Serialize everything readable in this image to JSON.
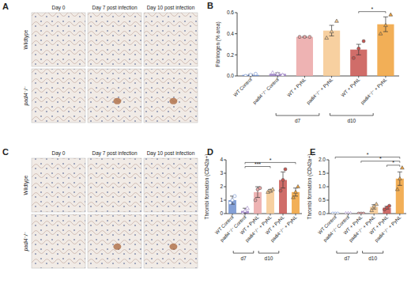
{
  "figure": {
    "panel_a": {
      "label": "A",
      "columns": [
        "Day 0",
        "Day 7 post infection",
        "Day 10 post infection"
      ],
      "rows": [
        "Wildtype",
        "padi4⁻/⁻"
      ]
    },
    "panel_c": {
      "label": "C",
      "columns": [
        "Day 0",
        "Day 7 post infection",
        "Day 10 post infection"
      ],
      "rows": [
        "Wildtype",
        "padi4⁻/⁻"
      ]
    }
  },
  "chart_data": [
    {
      "type": "bar",
      "panel": "B",
      "y_label": "Fibrinogen (% area)",
      "categories": [
        "WT Control",
        "padi4⁻/⁻ Control",
        "WT + PyNL",
        "padi4⁻/⁻ + PyNL",
        "WT + PyNL",
        "padi4⁻/⁻ + PyNL"
      ],
      "values": [
        0.01,
        0.02,
        0.37,
        0.43,
        0.25,
        0.49
      ],
      "errors": [
        0.005,
        0.01,
        0.005,
        0.05,
        0.05,
        0.07
      ],
      "points": [
        [
          0.0,
          0.01,
          0.02
        ],
        [
          0.03,
          0.02,
          0.01
        ],
        [
          0.37,
          0.37,
          0.37
        ],
        [
          0.36,
          0.42,
          0.52
        ],
        [
          0.17,
          0.26,
          0.33
        ],
        [
          0.4,
          0.48,
          0.58
        ]
      ],
      "colors": [
        "#6f8fcf",
        "#9b7fc4",
        "#eba6a6",
        "#f6c88f",
        "#c8534f",
        "#f0a13a"
      ],
      "groups": [
        {
          "label": "d7",
          "start": 2,
          "end": 3
        },
        {
          "label": "d10",
          "start": 4,
          "end": 5
        }
      ],
      "significance": [
        {
          "label": "*",
          "from": 4,
          "to": 5
        }
      ],
      "ylim": [
        0,
        0.6
      ],
      "yticks": [
        {
          "value": 0,
          "label": "0.0"
        },
        {
          "value": 0.2,
          "label": "0.2"
        },
        {
          "value": 0.4,
          "label": "0.4"
        },
        {
          "value": 0.6,
          "label": "0.6"
        }
      ]
    },
    {
      "type": "bar",
      "panel": "D",
      "y_label": "Thrombi formation (CD42a+)",
      "categories": [
        "WT Control",
        "padi4⁻/⁻ Control",
        "WT + PyNL",
        "padi4⁻/⁻ + PyNL",
        "WT + PyNL",
        "padi4⁻/⁻ + PyNL"
      ],
      "values": [
        1.0,
        0.2,
        1.6,
        1.7,
        2.5,
        1.6
      ],
      "errors": [
        0.3,
        0.2,
        0.4,
        0.1,
        0.6,
        0.3
      ],
      "points": [
        [
          0.8,
          1.0,
          1.3
        ],
        [
          0.0,
          0.2,
          0.4
        ],
        [
          1.0,
          1.8,
          1.9
        ],
        [
          1.6,
          1.7,
          1.8
        ],
        [
          1.7,
          2.5,
          3.3
        ],
        [
          1.2,
          1.6,
          2.0
        ]
      ],
      "colors": [
        "#6f8fcf",
        "#9b7fc4",
        "#eba6a6",
        "#f6c88f",
        "#c8534f",
        "#f0a13a"
      ],
      "groups": [
        {
          "label": "d7",
          "start": 2,
          "end": 3
        },
        {
          "label": "d10",
          "start": 4,
          "end": 5
        }
      ],
      "significance": [
        {
          "label": "***",
          "from": 1,
          "to": 3
        },
        {
          "label": "*",
          "from": 1,
          "to": 5
        }
      ],
      "ylim": [
        0,
        4
      ],
      "yticks": [
        0,
        1,
        2,
        3,
        4
      ]
    },
    {
      "type": "bar",
      "panel": "E",
      "y_label": "Thrombi formation (CD42a+)",
      "categories": [
        "WT Control",
        "padi4⁻/⁻ Control",
        "WT + PyNL",
        "padi4⁻/⁻ + PyNL",
        "WT + PyNL",
        "padi4⁻/⁻ + PyNL"
      ],
      "values": [
        0.0,
        0.0,
        0.0,
        0.25,
        0.22,
        1.3
      ],
      "errors": [
        0.0,
        0.0,
        0.0,
        0.08,
        0.05,
        0.25
      ],
      "points": [
        [
          0.0,
          0.0,
          0.0
        ],
        [
          0.0,
          0.0,
          0.0
        ],
        [
          0.0,
          0.0,
          0.0
        ],
        [
          0.12,
          0.28,
          0.35
        ],
        [
          0.15,
          0.22,
          0.29
        ],
        [
          0.9,
          1.3,
          1.7
        ]
      ],
      "colors": [
        "#6f8fcf",
        "#9b7fc4",
        "#eba6a6",
        "#f6c88f",
        "#c8534f",
        "#f0a13a"
      ],
      "groups": [
        {
          "label": "d7",
          "start": 2,
          "end": 3
        },
        {
          "label": "d10",
          "start": 4,
          "end": 5
        }
      ],
      "significance": [
        {
          "label": "*",
          "from": 4,
          "to": 5
        },
        {
          "label": "*",
          "from": 2,
          "to": 5
        },
        {
          "label": "*",
          "from": 0,
          "to": 5
        }
      ],
      "ylim": [
        0,
        2
      ],
      "yticks": [
        {
          "value": 0,
          "label": "0.0"
        },
        {
          "value": 0.5,
          "label": "0.5"
        },
        {
          "value": 1,
          "label": "1.0"
        },
        {
          "value": 1.5,
          "label": "1.5"
        },
        {
          "value": 2,
          "label": "2.0"
        }
      ]
    }
  ]
}
